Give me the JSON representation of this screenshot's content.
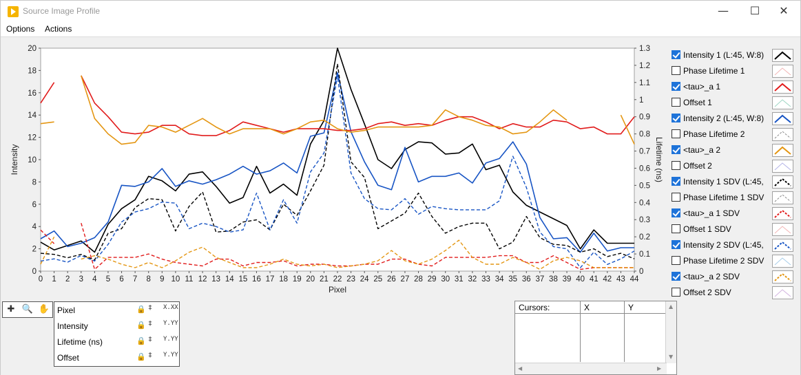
{
  "window": {
    "title": "Source Image Profile",
    "icon": "labview-icon"
  },
  "menu": [
    "Options",
    "Actions"
  ],
  "legend": [
    {
      "label": "Intensity 1 (L:45, W:8)",
      "checked": true,
      "color": "#000000",
      "dash": false,
      "faded": false
    },
    {
      "label": "Phase Lifetime 1",
      "checked": false,
      "color": "#f2b6b6",
      "dash": false,
      "faded": true
    },
    {
      "label": "<tau>_a 1",
      "checked": true,
      "color": "#e11b1b",
      "dash": false,
      "faded": false
    },
    {
      "label": "Offset 1",
      "checked": false,
      "color": "#9fd6c4",
      "dash": false,
      "faded": true
    },
    {
      "label": "Intensity 2 (L:45, W:8)",
      "checked": true,
      "color": "#1754c4",
      "dash": false,
      "faded": false
    },
    {
      "label": "Phase Lifetime 2",
      "checked": false,
      "color": "#8a8a8a",
      "dash": true,
      "faded": true
    },
    {
      "label": "<tau>_a 2",
      "checked": true,
      "color": "#e49612",
      "dash": false,
      "faded": false
    },
    {
      "label": "Offset 2",
      "checked": false,
      "color": "#b4b4e8",
      "dash": false,
      "faded": true
    },
    {
      "label": "Intensity 1 SDV  (L:45,",
      "checked": true,
      "color": "#000000",
      "dash": true,
      "faded": false
    },
    {
      "label": "Phase Lifetime 1 SDV",
      "checked": false,
      "color": "#8a8a8a",
      "dash": true,
      "faded": true
    },
    {
      "label": "<tau>_a 1 SDV",
      "checked": true,
      "color": "#e11b1b",
      "dash": true,
      "faded": false
    },
    {
      "label": "Offset 1 SDV",
      "checked": false,
      "color": "#f2b6b6",
      "dash": false,
      "faded": true
    },
    {
      "label": "Intensity 2 SDV  (L:45,",
      "checked": true,
      "color": "#1754c4",
      "dash": true,
      "faded": false
    },
    {
      "label": "Phase Lifetime 2 SDV",
      "checked": false,
      "color": "#a8cde8",
      "dash": false,
      "faded": true
    },
    {
      "label": "<tau>_a 2 SDV",
      "checked": true,
      "color": "#e49612",
      "dash": true,
      "faded": false
    },
    {
      "label": "Offset 2 SDV",
      "checked": false,
      "color": "#d2b4e0",
      "dash": false,
      "faded": true
    }
  ],
  "scale_legend": [
    {
      "name": "Pixel",
      "format_icon": "X.XX"
    },
    {
      "name": "Intensity",
      "format_icon": "Y.YY"
    },
    {
      "name": "Lifetime (ns)",
      "format_icon": "Y.YY"
    },
    {
      "name": "Offset",
      "format_icon": "Y.YY"
    }
  ],
  "tools": [
    "cursor-move-icon",
    "zoom-icon",
    "pan-hand-icon"
  ],
  "cursors": {
    "headers": [
      "Cursors:",
      "X",
      "Y"
    ]
  },
  "chart_data": {
    "type": "line",
    "xlabel": "Pixel",
    "ylabel": "Intensity",
    "y2label": "Lifetime (ns)",
    "xlim": [
      0,
      44
    ],
    "ylim": [
      0,
      20
    ],
    "y2lim": [
      0,
      1.3
    ],
    "x_ticks": [
      0,
      1,
      2,
      3,
      4,
      5,
      6,
      7,
      8,
      9,
      10,
      11,
      12,
      13,
      14,
      15,
      16,
      17,
      18,
      19,
      20,
      21,
      22,
      23,
      24,
      25,
      26,
      27,
      28,
      29,
      30,
      31,
      32,
      33,
      34,
      35,
      36,
      37,
      38,
      39,
      40,
      41,
      42,
      43,
      44
    ],
    "y_ticks": [
      0,
      2,
      4,
      6,
      8,
      10,
      12,
      14,
      16,
      18,
      20
    ],
    "y2_ticks": [
      "0",
      "0.1",
      "0.2",
      "0.3",
      "0.4",
      "0.5",
      "0.6",
      "0.7",
      "0.8",
      "0.9",
      "1",
      "1.1",
      "1.2",
      "1.3"
    ],
    "grid": false,
    "series": [
      {
        "name": "Intensity 1 (L:45, W:8)",
        "axis": "left",
        "color": "#000000",
        "dash": false,
        "width": 1.6,
        "values": [
          2.6,
          1.9,
          2.3,
          2.7,
          1.7,
          4.2,
          5.6,
          6.4,
          8.5,
          8.1,
          7.2,
          8.7,
          8.9,
          7.6,
          6.1,
          6.6,
          9.4,
          7.0,
          7.8,
          6.8,
          11.4,
          13.5,
          20.0,
          16.3,
          13.2,
          10.0,
          9.2,
          10.9,
          11.6,
          11.5,
          10.5,
          10.6,
          11.4,
          9.1,
          9.5,
          7.1,
          5.9,
          5.3,
          4.7,
          4.1,
          2.0,
          3.7,
          2.5,
          2.5,
          2.5
        ]
      },
      {
        "name": "Intensity 2 (L:45, W:8)",
        "axis": "left",
        "color": "#1754c4",
        "dash": false,
        "width": 1.6,
        "values": [
          2.9,
          3.6,
          2.2,
          2.5,
          3.0,
          4.4,
          7.7,
          7.6,
          8.0,
          9.2,
          7.6,
          8.1,
          7.8,
          8.2,
          8.7,
          9.4,
          8.7,
          9.0,
          9.7,
          8.8,
          12.1,
          12.4,
          17.8,
          12.5,
          9.8,
          7.7,
          7.3,
          11.1,
          8.0,
          8.5,
          8.5,
          8.8,
          7.9,
          9.7,
          10.1,
          11.6,
          9.6,
          4.8,
          2.9,
          3.0,
          1.7,
          3.4,
          1.8,
          2.1,
          2.1
        ]
      },
      {
        "name": "Intensity 1 SDV  (L:45,",
        "axis": "left",
        "color": "#000000",
        "dash": true,
        "width": 1.4,
        "values": [
          1.6,
          1.5,
          1.2,
          1.5,
          1.0,
          3.4,
          3.8,
          5.7,
          6.5,
          6.4,
          3.6,
          5.8,
          7.1,
          3.5,
          3.6,
          4.4,
          4.6,
          3.7,
          6.0,
          5.0,
          7.2,
          9.5,
          18.6,
          9.8,
          8.4,
          3.8,
          4.5,
          5.2,
          7.0,
          4.9,
          3.4,
          4.0,
          4.3,
          4.3,
          2.0,
          2.6,
          4.9,
          3.0,
          2.4,
          2.3,
          1.7,
          2.0,
          1.3,
          1.6,
          1.1
        ]
      },
      {
        "name": "Intensity 2 SDV  (L:45,",
        "axis": "left",
        "color": "#1754c4",
        "dash": true,
        "width": 1.4,
        "values": [
          0.9,
          1.1,
          0.8,
          1.4,
          0.9,
          2.4,
          4.4,
          5.3,
          5.6,
          6.2,
          6.1,
          3.8,
          4.3,
          4.0,
          3.5,
          3.7,
          7.0,
          3.7,
          6.4,
          4.3,
          8.9,
          10.6,
          17.5,
          8.8,
          6.5,
          5.6,
          5.5,
          6.5,
          5.1,
          5.8,
          5.6,
          5.5,
          5.5,
          5.5,
          6.3,
          10.3,
          7.5,
          3.5,
          2.2,
          2.0,
          0.3,
          1.7,
          0.6,
          1.1,
          1.8
        ]
      },
      {
        "name": "<tau>_a 1",
        "axis": "right",
        "color": "#e11b1b",
        "dash": false,
        "width": 1.6,
        "values": [
          0.98,
          1.1,
          null,
          1.14,
          0.98,
          0.9,
          0.81,
          0.8,
          0.81,
          0.85,
          0.85,
          0.8,
          0.79,
          0.79,
          0.82,
          0.87,
          0.85,
          0.83,
          0.81,
          0.83,
          0.83,
          0.83,
          0.82,
          0.82,
          0.83,
          0.86,
          0.87,
          0.85,
          0.86,
          0.85,
          0.88,
          0.9,
          0.9,
          0.87,
          0.83,
          0.86,
          0.84,
          0.84,
          0.88,
          0.87,
          0.83,
          0.84,
          0.8,
          0.8,
          0.9
        ]
      },
      {
        "name": "<tau>_a 2",
        "axis": "right",
        "color": "#e49612",
        "dash": false,
        "width": 1.6,
        "values": [
          0.86,
          0.87,
          null,
          1.14,
          0.89,
          0.8,
          0.74,
          0.75,
          0.85,
          0.84,
          0.81,
          0.85,
          0.89,
          0.84,
          0.8,
          0.83,
          0.83,
          0.83,
          0.8,
          0.83,
          0.87,
          0.88,
          0.83,
          0.81,
          0.82,
          0.84,
          0.84,
          0.84,
          0.84,
          0.85,
          0.94,
          0.9,
          0.88,
          0.85,
          0.84,
          0.8,
          0.81,
          0.87,
          0.94,
          0.88,
          null,
          null,
          null,
          0.91,
          0.74
        ]
      },
      {
        "name": "<tau>_a 1 SDV",
        "axis": "right",
        "color": "#e11b1b",
        "dash": true,
        "width": 1.4,
        "values": [
          0.24,
          0.16,
          null,
          0.28,
          0.01,
          0.08,
          0.08,
          0.08,
          0.1,
          0.07,
          0.05,
          0.04,
          0.03,
          0.07,
          0.07,
          0.03,
          0.05,
          0.05,
          0.06,
          0.03,
          0.04,
          0.04,
          0.03,
          0.03,
          0.04,
          0.04,
          0.07,
          0.07,
          0.04,
          0.03,
          0.08,
          0.08,
          0.08,
          0.08,
          0.09,
          0.09,
          0.05,
          0.05,
          0.09,
          0.05,
          0.01,
          0.02,
          0.02,
          0.02,
          0.02
        ]
      },
      {
        "name": "<tau>_a 2 SDV",
        "axis": "right",
        "color": "#e49612",
        "dash": true,
        "width": 1.4,
        "values": [
          0.04,
          0.2,
          null,
          0.07,
          0.09,
          0.07,
          0.04,
          0.02,
          0.05,
          0.02,
          0.06,
          0.11,
          0.14,
          0.08,
          0.05,
          0.02,
          0.02,
          0.04,
          0.07,
          0.04,
          0.03,
          0.04,
          0.02,
          0.03,
          0.04,
          0.06,
          0.12,
          0.06,
          0.04,
          0.07,
          0.12,
          0.18,
          0.08,
          0.04,
          0.04,
          0.08,
          0.05,
          0.01,
          0.06,
          0.08,
          0.06,
          0.02,
          0.02,
          0.02,
          0.02
        ]
      }
    ]
  }
}
